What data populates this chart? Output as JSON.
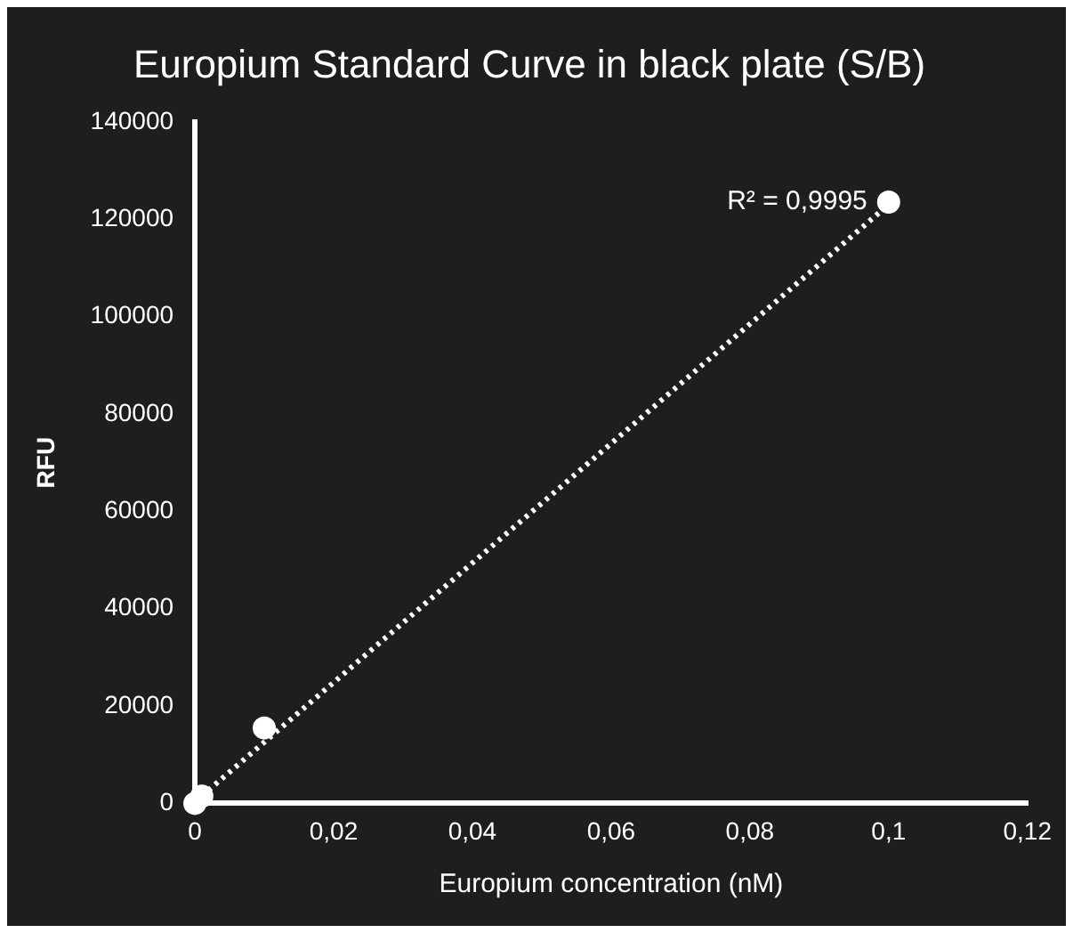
{
  "chart_data": {
    "type": "scatter",
    "title": "Europium Standard Curve in black plate (S/B)",
    "xlabel": "Europium concentration (nM)",
    "ylabel": "RFU",
    "x": [
      0,
      0.001,
      0.01,
      0.1
    ],
    "series": [
      {
        "color": "#ffffff",
        "values": [
          0,
          1500,
          15500,
          123500
        ]
      },
      {
        "type": "line",
        "color": "#ffffff",
        "x": [
          0,
          0.1
        ],
        "values": [
          300,
          123000
        ],
        "line_style": "dotted",
        "marker": "none"
      }
    ],
    "annotations": [
      {
        "text": "R² = 0,9995",
        "x": 0.1,
        "y": 123500
      }
    ],
    "xlim": [
      0,
      0.12
    ],
    "xticks": [
      0,
      {
        "value": 0.02,
        "label": "0,02"
      },
      {
        "value": 0.04,
        "label": "0,04"
      },
      {
        "value": 0.06,
        "label": "0,06"
      },
      {
        "value": 0.08,
        "label": "0,08"
      },
      {
        "value": 0.1,
        "label": "0,1"
      },
      {
        "value": 0.12,
        "label": "0,12"
      }
    ],
    "ylim": [
      0,
      140000
    ],
    "yticks": [
      0,
      20000,
      40000,
      60000,
      80000,
      100000,
      120000,
      140000
    ],
    "grid": false,
    "legend": false,
    "marker": "circle"
  }
}
